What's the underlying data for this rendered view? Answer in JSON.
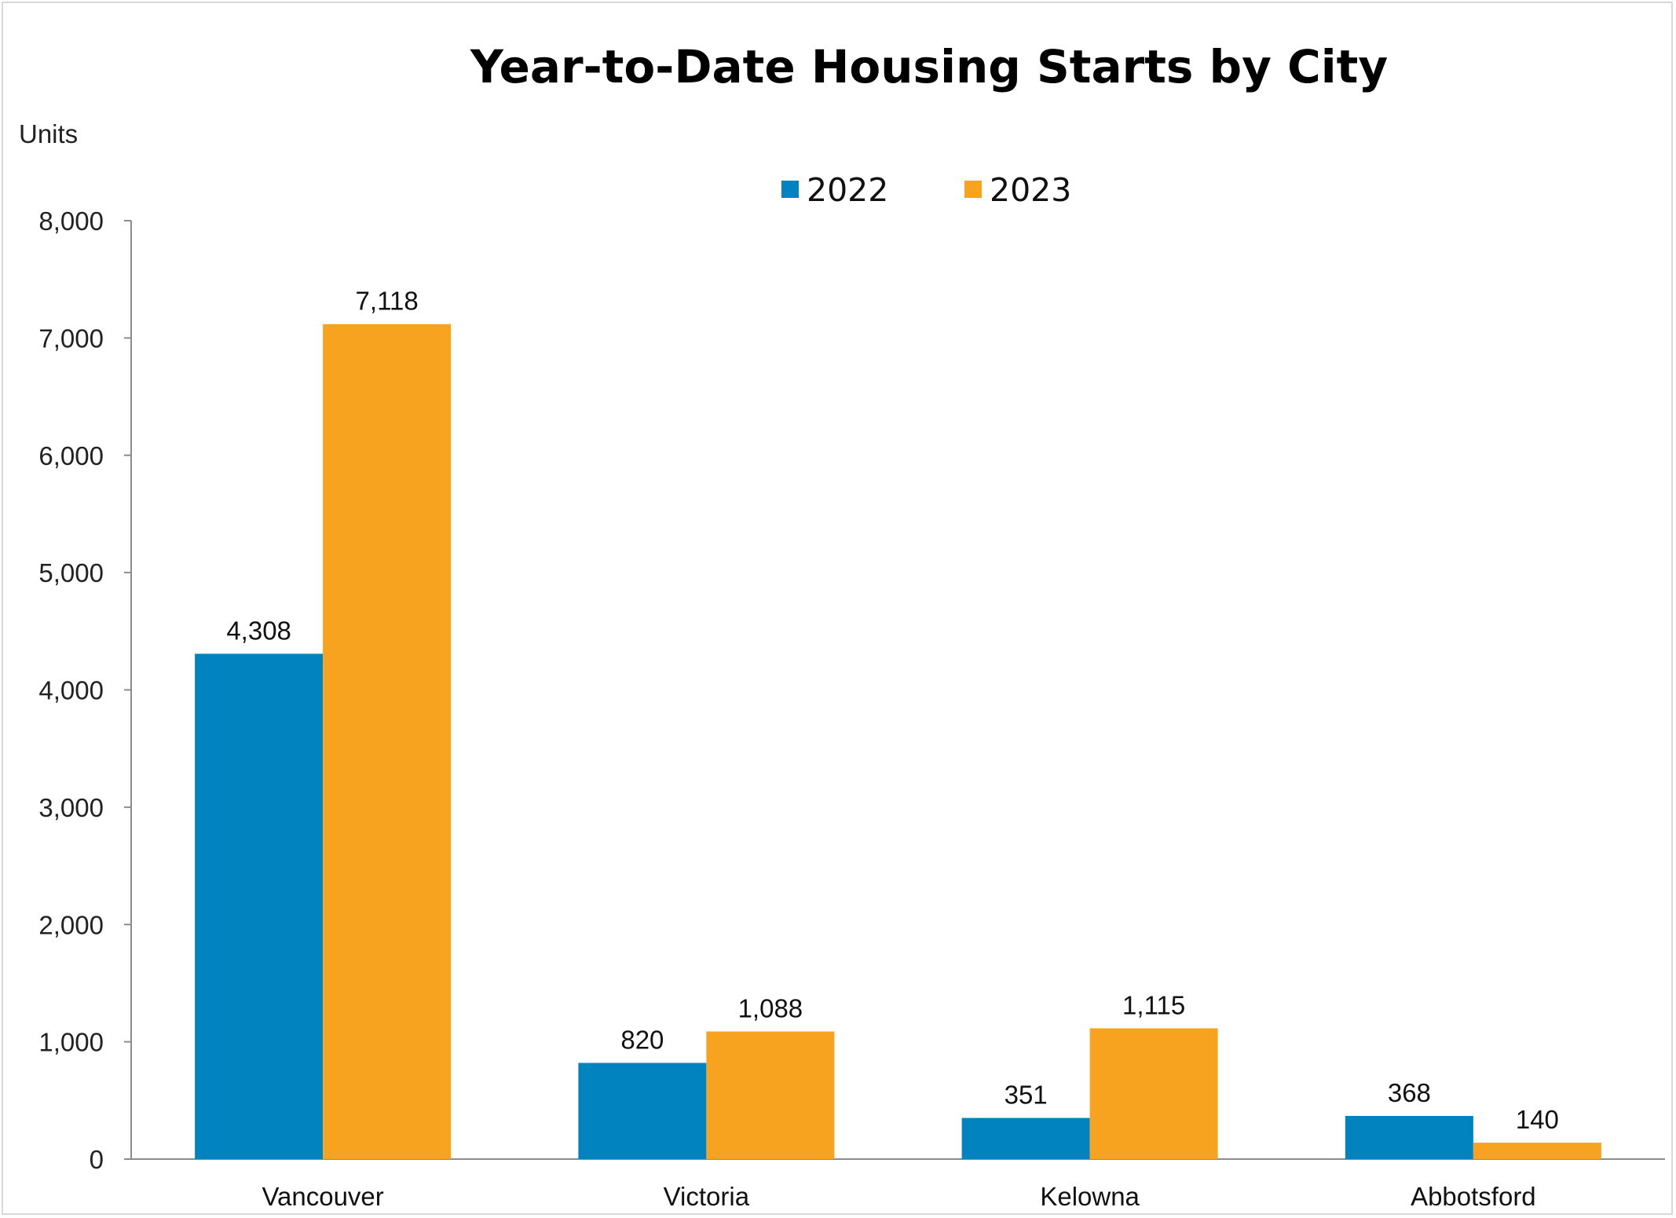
{
  "chart_data": {
    "type": "bar",
    "title": "Year-to-Date Housing Starts by City",
    "ylabel": "Units",
    "xlabel": "",
    "categories": [
      "Vancouver",
      "Victoria",
      "Kelowna",
      "Abbotsford"
    ],
    "series": [
      {
        "name": "2022",
        "color": "#0083BE",
        "values": [
          4308,
          820,
          351,
          368
        ],
        "labels": [
          "4,308",
          "820",
          "351",
          "368"
        ]
      },
      {
        "name": "2023",
        "color": "#F8A320",
        "values": [
          7118,
          1088,
          1115,
          140
        ],
        "labels": [
          "7,118",
          "1,088",
          "1,115",
          "140"
        ]
      }
    ],
    "ylim": [
      0,
      8000
    ],
    "yticks": [
      0,
      1000,
      2000,
      3000,
      4000,
      5000,
      6000,
      7000,
      8000
    ],
    "ytick_labels": [
      "0",
      "1,000",
      "2,000",
      "3,000",
      "4,000",
      "5,000",
      "6,000",
      "7,000",
      "8,000"
    ],
    "grid": false,
    "legend_position": "top-center"
  }
}
